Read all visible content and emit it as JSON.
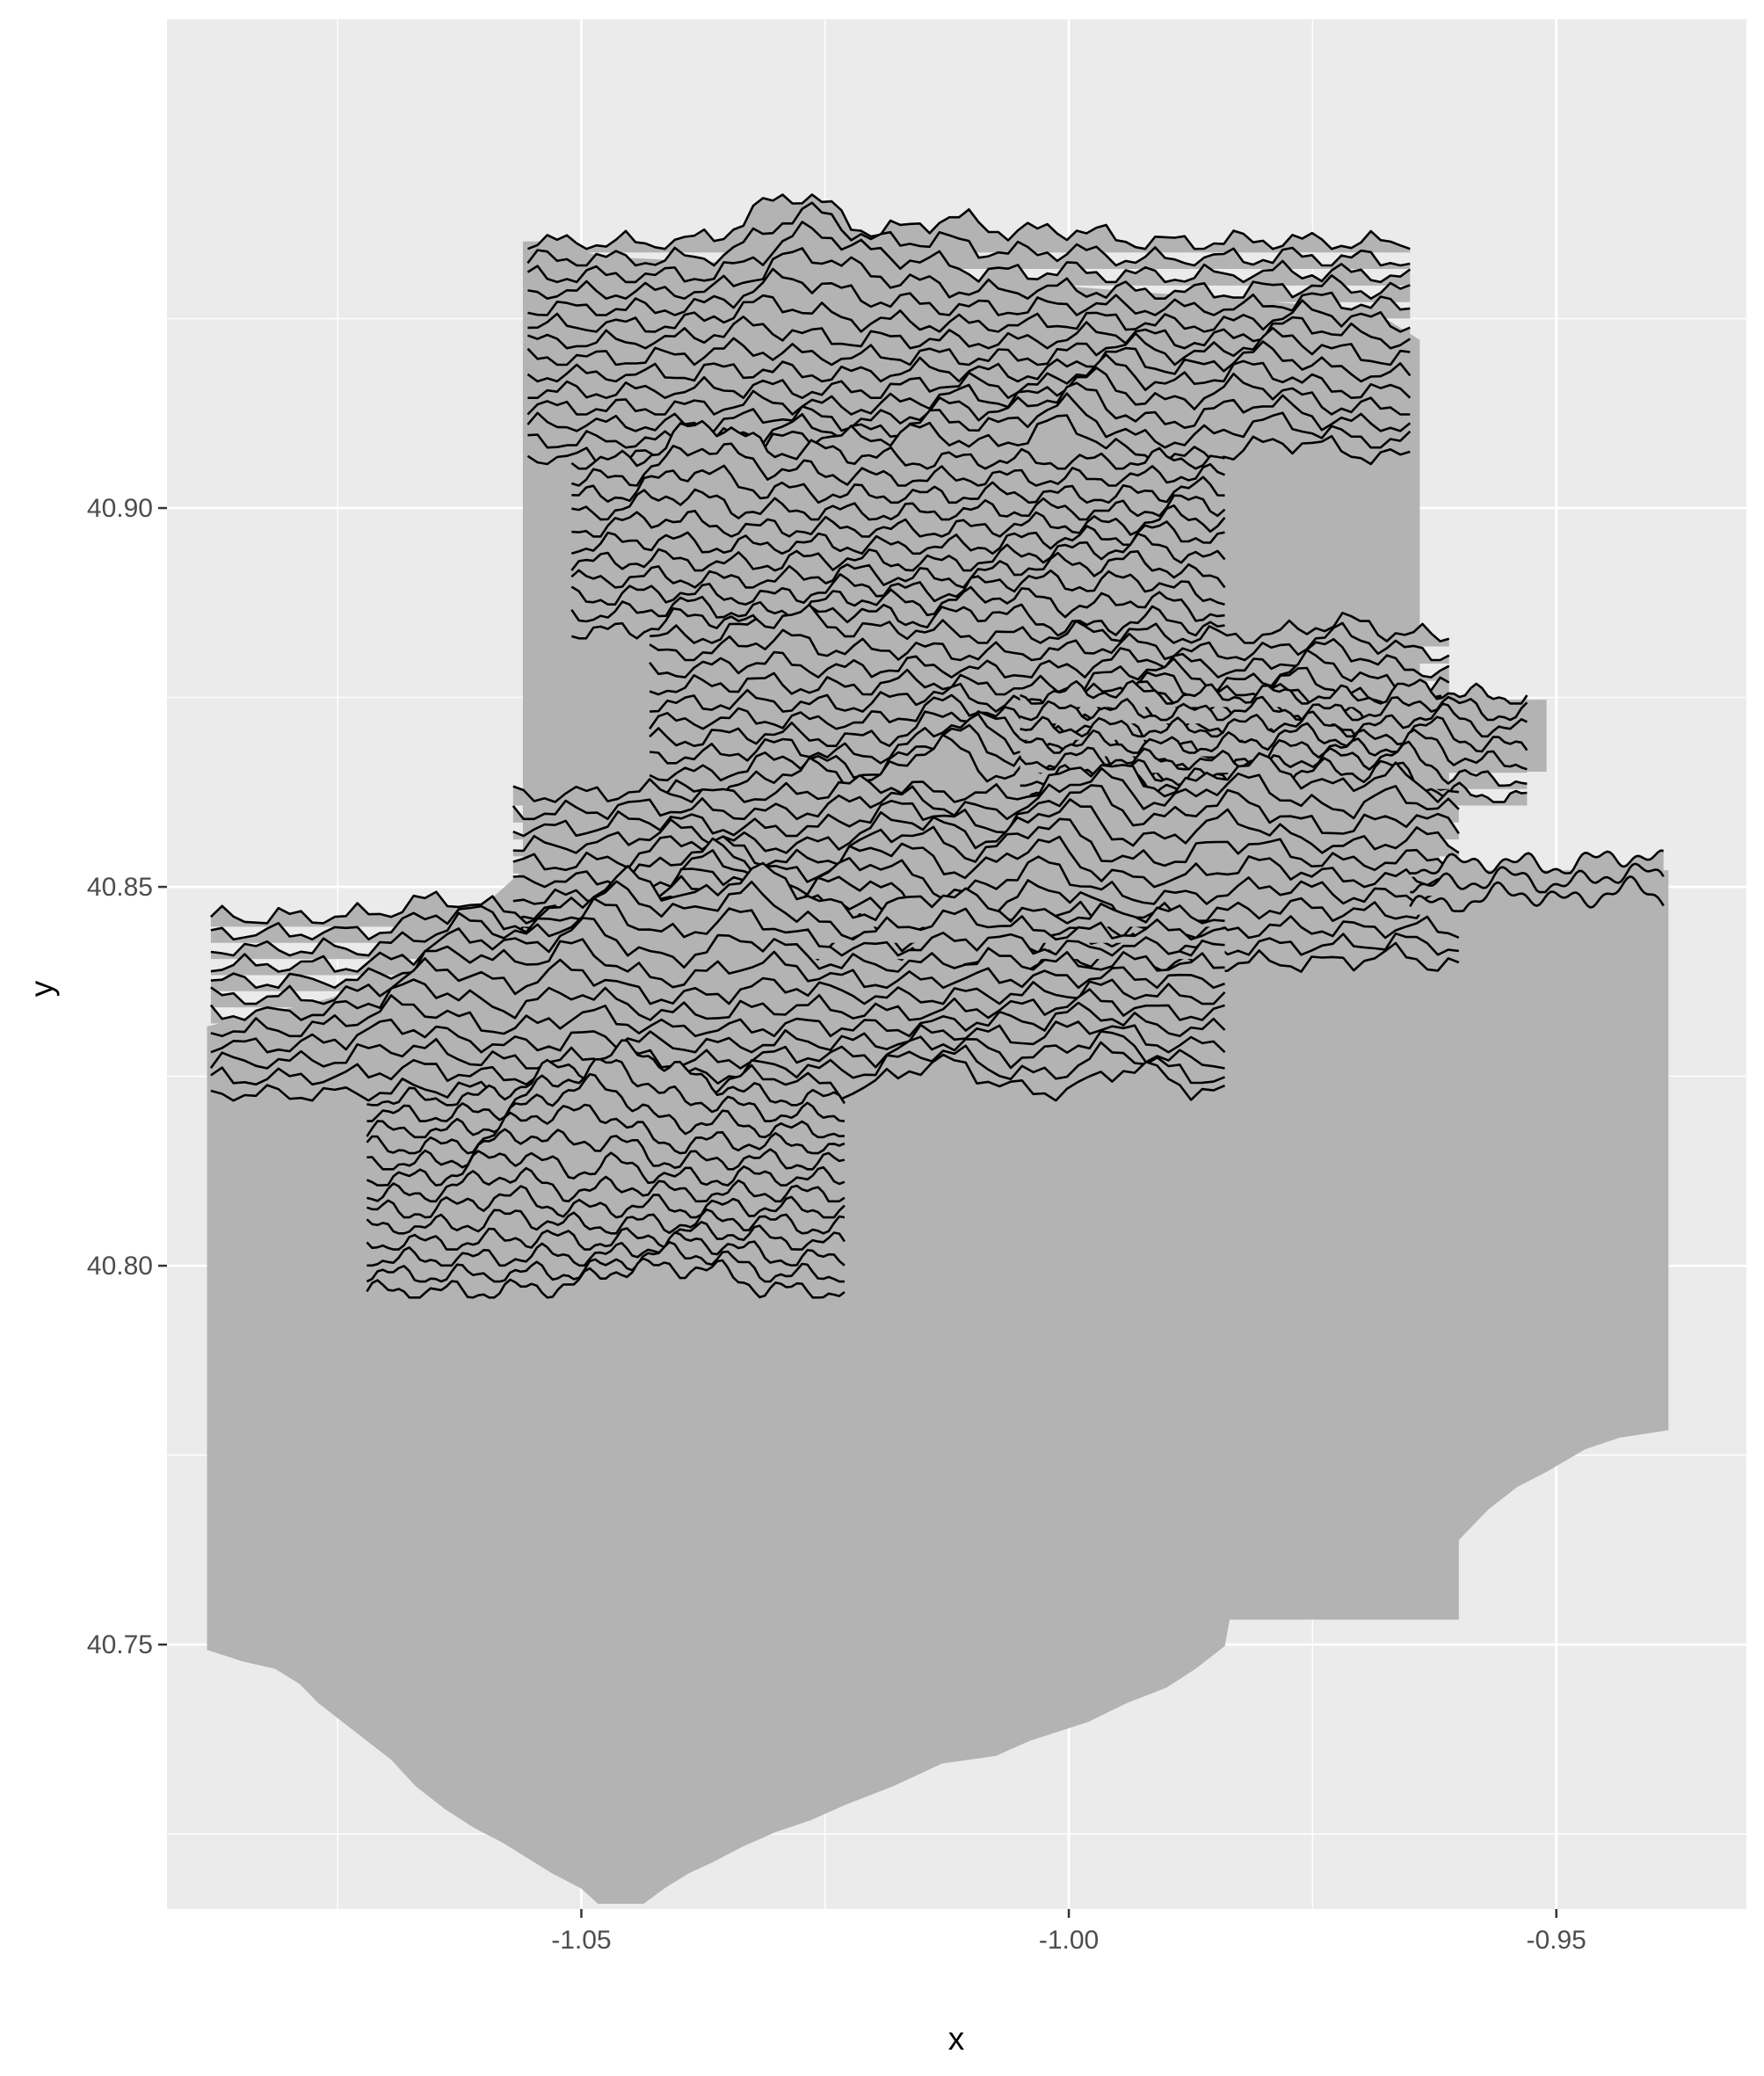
{
  "chart_data": {
    "type": "area",
    "title": "",
    "xlabel": "x",
    "ylabel": "y",
    "xlim": [
      -1.0925,
      -0.9305
    ],
    "ylim": [
      40.7151,
      40.9645
    ],
    "x_ticks": [
      -1.05,
      -1.0,
      -0.95
    ],
    "x_tick_labels": [
      "-1.05",
      "-1.00",
      "-0.95"
    ],
    "y_ticks": [
      40.75,
      40.8,
      40.85,
      40.9
    ],
    "y_tick_labels": [
      "40.75",
      "40.80",
      "40.85",
      "40.90"
    ],
    "grid": true,
    "legend": "none",
    "ridge_step": 0.0022,
    "amp_scale": 0.004,
    "fill_color": "#b3b3b3",
    "line_color": "#000000",
    "panel_color": "#ebebeb",
    "grid_color": "#ffffff",
    "silhouette": [
      [
        -1.0884,
        40.8316
      ],
      [
        -1.0884,
        40.7493
      ],
      [
        -1.0848,
        40.7478
      ],
      [
        -1.0814,
        40.7468
      ],
      [
        -1.0789,
        40.7448
      ],
      [
        -1.077,
        40.7423
      ],
      [
        -1.0745,
        40.7398
      ],
      [
        -1.072,
        40.7373
      ],
      [
        -1.0695,
        40.7348
      ],
      [
        -1.067,
        40.7313
      ],
      [
        -1.064,
        40.7283
      ],
      [
        -1.061,
        40.7258
      ],
      [
        -1.058,
        40.7238
      ],
      [
        -1.0555,
        40.7218
      ],
      [
        -1.053,
        40.7198
      ],
      [
        -1.05,
        40.7178
      ],
      [
        -1.0483,
        40.7158
      ],
      [
        -1.0436,
        40.7158
      ],
      [
        -1.0415,
        40.7178
      ],
      [
        -1.039,
        40.7198
      ],
      [
        -1.0365,
        40.7213
      ],
      [
        -1.0335,
        40.7233
      ],
      [
        -1.03,
        40.7253
      ],
      [
        -1.0265,
        40.7268
      ],
      [
        -1.023,
        40.7288
      ],
      [
        -1.018,
        40.7313
      ],
      [
        -1.013,
        40.7343
      ],
      [
        -1.0075,
        40.7353
      ],
      [
        -1.004,
        40.7373
      ],
      [
        -0.998,
        40.7398
      ],
      [
        -0.994,
        40.7423
      ],
      [
        -0.99,
        40.7443
      ],
      [
        -0.987,
        40.7468
      ],
      [
        -0.984,
        40.7498
      ],
      [
        -0.9835,
        40.7533
      ],
      [
        -0.96,
        40.7533
      ],
      [
        -0.96,
        40.7638
      ],
      [
        -0.957,
        40.7678
      ],
      [
        -0.954,
        40.7708
      ],
      [
        -0.951,
        40.7728
      ],
      [
        -0.947,
        40.7758
      ],
      [
        -0.9435,
        40.7773
      ],
      [
        -0.9385,
        40.7783
      ],
      [
        -0.9385,
        40.8522
      ],
      [
        -0.962,
        40.8522
      ],
      [
        -0.962,
        40.8652
      ],
      [
        -0.951,
        40.8652
      ],
      [
        -0.951,
        40.8747
      ],
      [
        -0.964,
        40.8747
      ],
      [
        -0.964,
        40.9222
      ],
      [
        -0.969,
        40.9262
      ],
      [
        -1.025,
        40.9317
      ],
      [
        -1.048,
        40.9332
      ],
      [
        -1.053,
        40.9352
      ],
      [
        -1.056,
        40.9352
      ],
      [
        -1.056,
        40.9192
      ],
      [
        -1.056,
        40.8522
      ],
      [
        -1.068,
        40.8382
      ],
      [
        -1.0775,
        40.8347
      ],
      [
        -1.0884,
        40.8316
      ]
    ],
    "ridge_groups": [
      {
        "name": "",
        "y_start": 40.9342,
        "y_end": 40.9058,
        "x_start": -1.0555,
        "x_end": -0.965,
        "bumps": [
          [
            -1.03,
            1.6,
            0.006
          ],
          [
            -1.015,
            1.0,
            0.006
          ],
          [
            -0.998,
            1.2,
            0.005
          ],
          [
            -0.978,
            0.8,
            0.006
          ]
        ]
      },
      {
        "name": "",
        "y_start": 40.9052,
        "y_end": 40.8828,
        "x_start": -1.051,
        "x_end": -0.984,
        "bumps": [
          [
            -1.04,
            1.5,
            0.005
          ],
          [
            -1.025,
            0.9,
            0.006
          ],
          [
            -1.005,
            0.7,
            0.007
          ],
          [
            -0.99,
            0.6,
            0.005
          ]
        ]
      },
      {
        "name": "",
        "y_start": 40.8822,
        "y_end": 40.8618,
        "x_start": -1.043,
        "x_end": -0.961,
        "bumps": [
          [
            -1.03,
            1.4,
            0.005
          ],
          [
            -1.014,
            1.7,
            0.005
          ],
          [
            -0.995,
            1.3,
            0.006
          ],
          [
            -0.975,
            1.0,
            0.005
          ]
        ]
      },
      {
        "name": "",
        "y_start": 40.8742,
        "y_end": 40.8612,
        "x_start": -1.005,
        "x_end": -0.953,
        "bumps": [
          [
            -0.995,
            1.2,
            0.005
          ],
          [
            -0.978,
            1.0,
            0.006
          ],
          [
            -0.965,
            0.8,
            0.004
          ]
        ]
      },
      {
        "name": "",
        "y_start": 40.8612,
        "y_end": 40.8388,
        "x_start": -1.057,
        "x_end": -0.96,
        "bumps": [
          [
            -1.04,
            1.6,
            0.006
          ],
          [
            -1.02,
            1.2,
            0.006
          ],
          [
            -1.0,
            1.4,
            0.005
          ],
          [
            -0.98,
            1.1,
            0.006
          ],
          [
            -0.965,
            0.9,
            0.004
          ]
        ]
      },
      {
        "name": "",
        "y_start": 40.8518,
        "y_end": 40.8468,
        "x_start": -0.965,
        "x_end": -0.939,
        "bumps": [
          [
            -0.955,
            0.8,
            0.004
          ],
          [
            -0.945,
            0.6,
            0.004
          ]
        ]
      },
      {
        "name": "",
        "y_start": 40.8452,
        "y_end": 40.8218,
        "x_start": -1.088,
        "x_end": -0.984,
        "bumps": [
          [
            -1.065,
            1.0,
            0.006
          ],
          [
            -1.048,
            1.4,
            0.005
          ],
          [
            -1.03,
            1.6,
            0.006
          ],
          [
            -1.01,
            1.3,
            0.006
          ],
          [
            -0.995,
            0.9,
            0.005
          ]
        ]
      },
      {
        "name": "",
        "y_start": 40.8212,
        "y_end": 40.7958,
        "x_start": -1.072,
        "x_end": -1.023,
        "bumps": [
          [
            -1.055,
            1.1,
            0.005
          ],
          [
            -1.045,
            1.5,
            0.004
          ],
          [
            -1.035,
            0.9,
            0.005
          ]
        ]
      }
    ]
  }
}
